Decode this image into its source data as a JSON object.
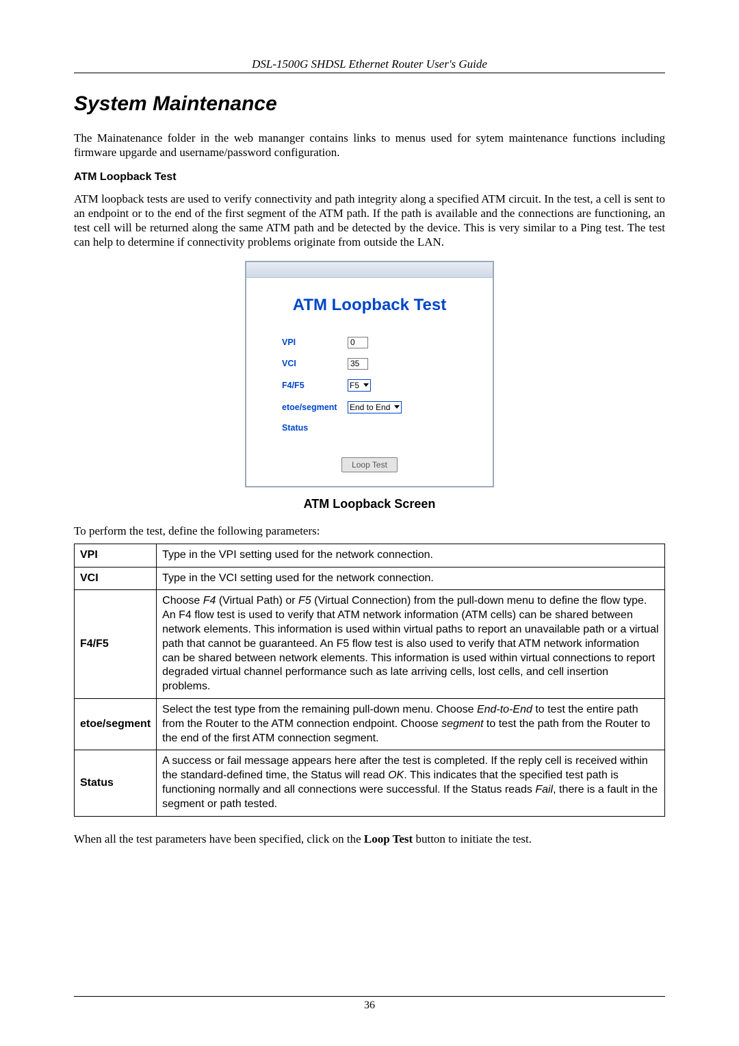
{
  "header": {
    "title": "DSL-1500G SHDSL Ethernet Router User's Guide"
  },
  "section": {
    "title": "System Maintenance"
  },
  "intro": {
    "p1": "The Mainatenance folder in the web mananger contains links to menus used for sytem maintenance functions including firmware upgarde and username/password configuration."
  },
  "atm": {
    "heading": "ATM Loopback Test",
    "p1": "ATM loopback tests are used to verify connectivity and path integrity along a specified ATM circuit. In the test, a cell is sent to an endpoint or to the end of the first segment of the ATM path. If the path is available and the connections are functioning, an test cell will be returned along the same ATM path and be detected by the device. This is very similar to a Ping test. The test can help to determine if connectivity problems originate from outside the LAN."
  },
  "screenshot": {
    "title": "ATM Loopback Test",
    "labels": {
      "vpi": "VPI",
      "vci": "VCI",
      "f4f5": "F4/F5",
      "etoe": "etoe/segment",
      "status": "Status"
    },
    "vpi_value": "0",
    "vci_value": "35",
    "f4f5_value": "F5",
    "etoe_value": "End to End",
    "button": "Loop Test",
    "colors": {
      "label_color": "#0046c8",
      "title_color": "#0046c8",
      "border_color": "#9ca8b8"
    }
  },
  "caption": "ATM Loopback Screen",
  "before_table": "To perform the test, define the following parameters:",
  "table": {
    "rows": [
      {
        "key": "VPI",
        "val_plain": "Type in the VPI setting used for the network connection."
      },
      {
        "key": "VCI",
        "val_plain": "Type in the VCI setting used for the network connection."
      },
      {
        "key": "F4/F5",
        "parts": [
          {
            "t": "Choose "
          },
          {
            "t": "F4",
            "i": true
          },
          {
            "t": " (Virtual Path) or "
          },
          {
            "t": "F5",
            "i": true
          },
          {
            "t": " (Virtual Connection) from the pull-down menu to define the flow type. An F4 flow test is used to verify that ATM network information (ATM cells) can be shared between network elements. This information is used within virtual paths to report an unavailable path or a virtual path that cannot be guaranteed. An F5 flow test is also used to verify that ATM network information can be shared between network elements. This information is used within virtual connections to report degraded virtual channel performance such as late arriving cells, lost cells, and cell insertion problems."
          }
        ]
      },
      {
        "key": "etoe/segment",
        "parts": [
          {
            "t": "Select the test type from the remaining pull-down menu. Choose "
          },
          {
            "t": "End-to-End",
            "i": true
          },
          {
            "t": " to test the entire path from the Router to the ATM connection endpoint. Choose "
          },
          {
            "t": "segment",
            "i": true
          },
          {
            "t": " to test the path from the Router to the end of the first ATM connection segment."
          }
        ]
      },
      {
        "key": "Status",
        "parts": [
          {
            "t": "A success or fail message appears here after the test is completed. If the reply cell is received within the standard-defined time, the Status will read "
          },
          {
            "t": "OK",
            "i": true
          },
          {
            "t": ". This indicates that the specified test path is functioning normally and all connections were successful. If the Status reads "
          },
          {
            "t": "Fail",
            "i": true
          },
          {
            "t": ", there is a fault in the segment or path tested."
          }
        ]
      }
    ]
  },
  "after_table": {
    "pre": "When all the test parameters have been specified, click on the ",
    "bold": "Loop Test",
    "post": " button to initiate the test."
  },
  "footer": {
    "page": "36"
  }
}
